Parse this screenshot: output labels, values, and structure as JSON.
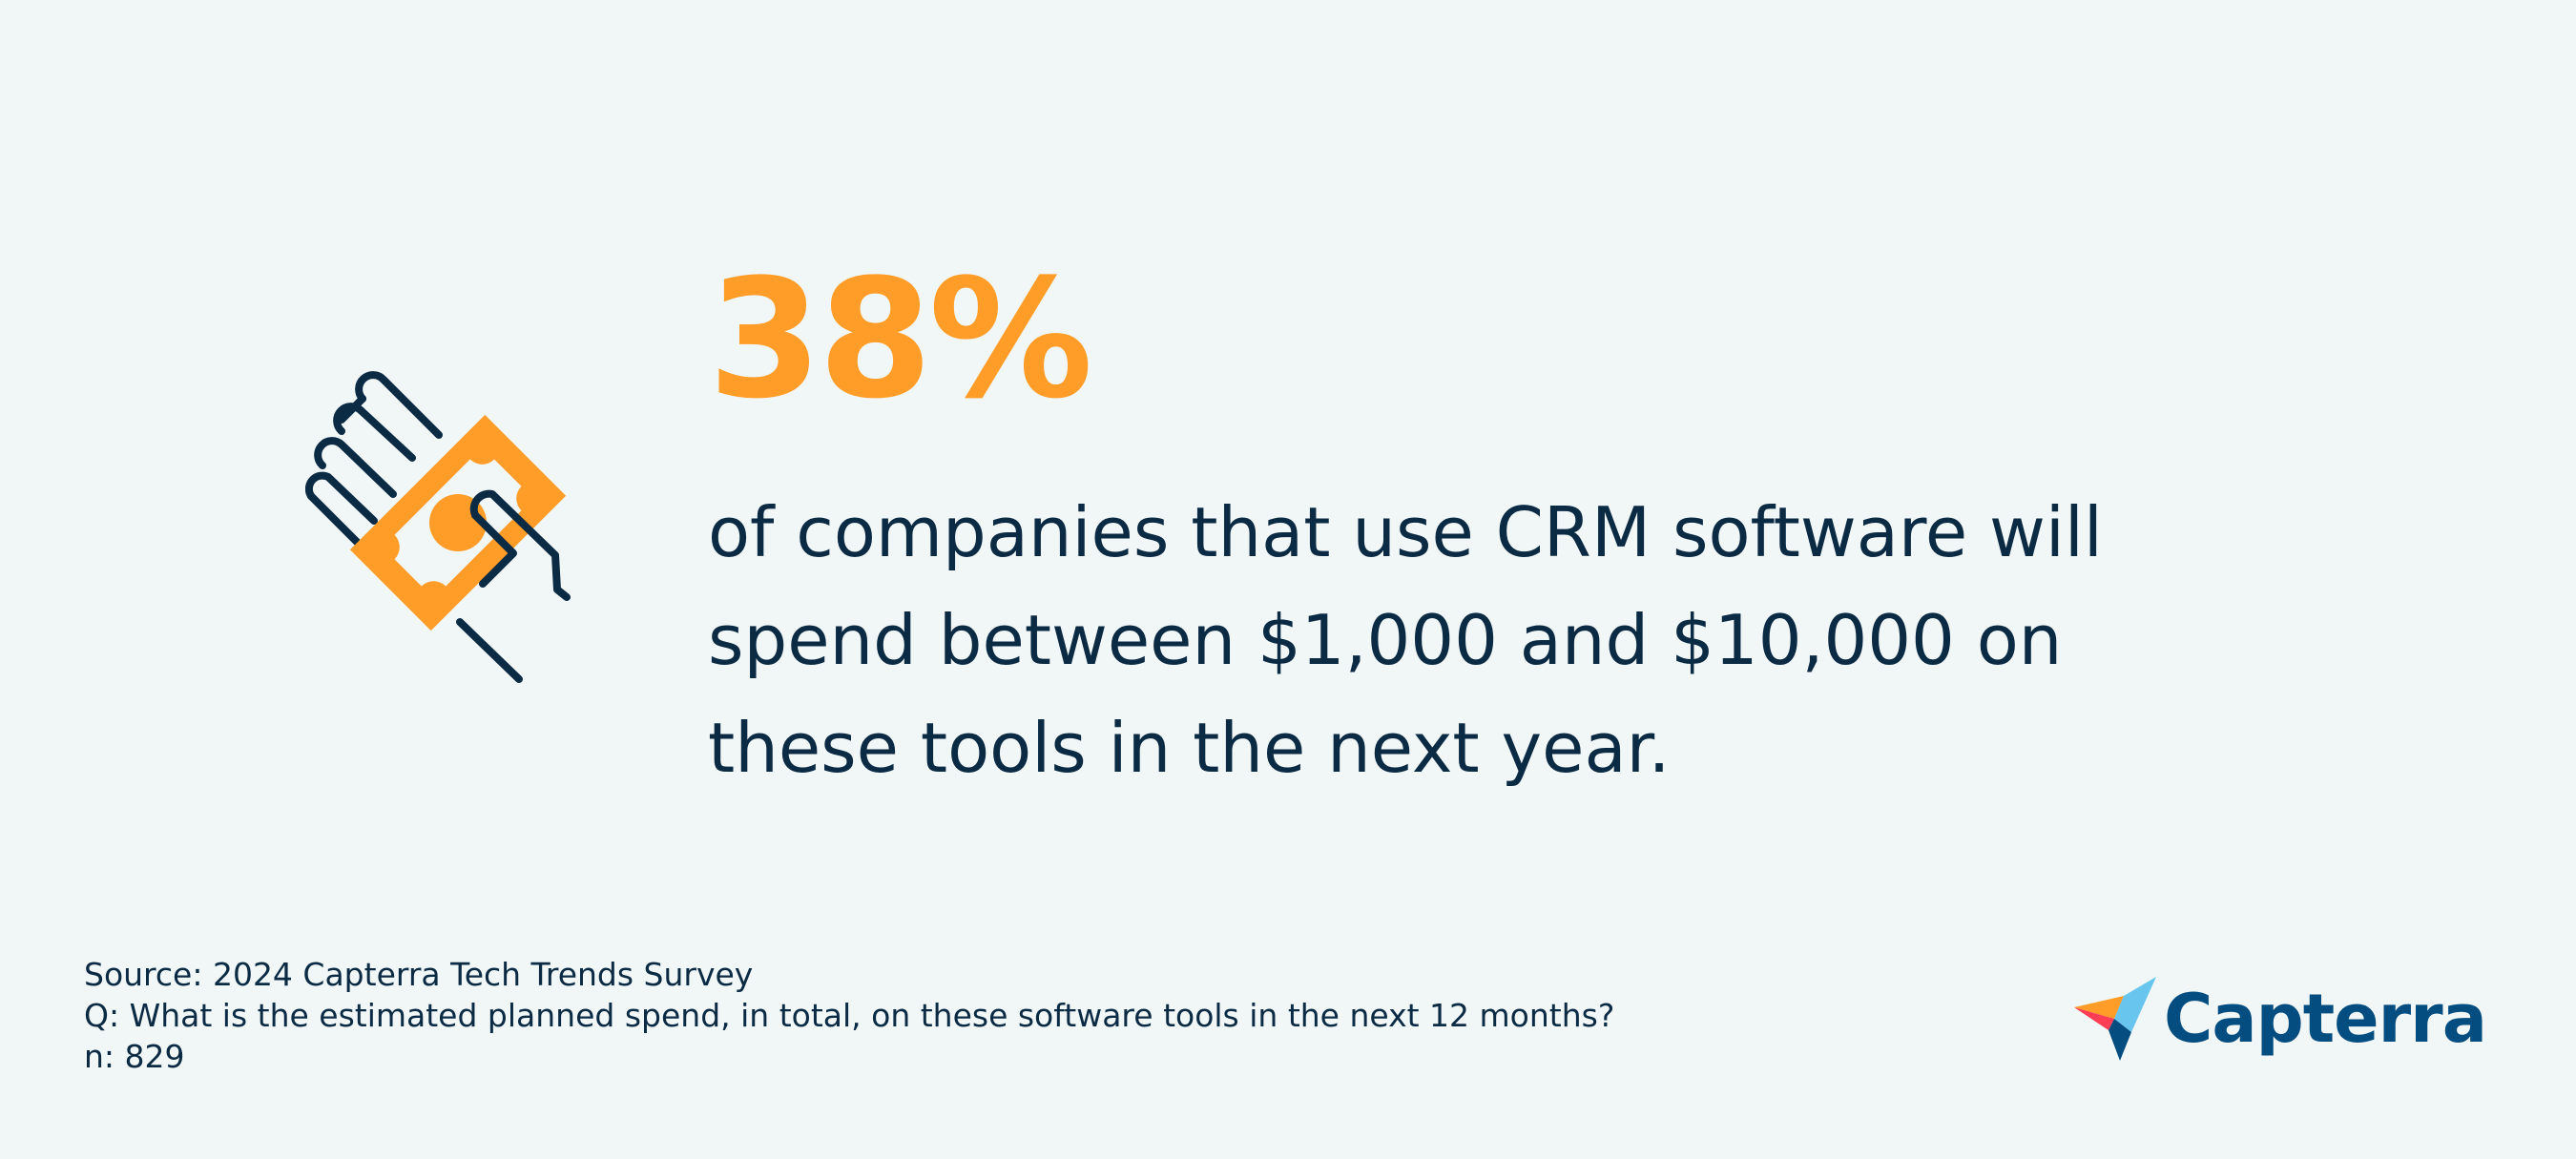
{
  "headline": {
    "stat": "38%",
    "text": "of companies that use CRM software will spend between $1,000 and $10,000 on these tools in the next year."
  },
  "footer": {
    "source": "Source: 2024 Capterra Tech Trends Survey",
    "question": "Q: What is the estimated planned spend, in total, on these software tools in the next 12 months?",
    "sample": "n: 829"
  },
  "brand": {
    "name": "Capterra"
  },
  "icons": {
    "illustration": "hand-holding-money-icon",
    "logo": "capterra-logo-icon"
  },
  "colors": {
    "background": "#f1f6f6",
    "accent": "#ff9d28",
    "text": "#0b2a44",
    "brand": "#044d80"
  }
}
